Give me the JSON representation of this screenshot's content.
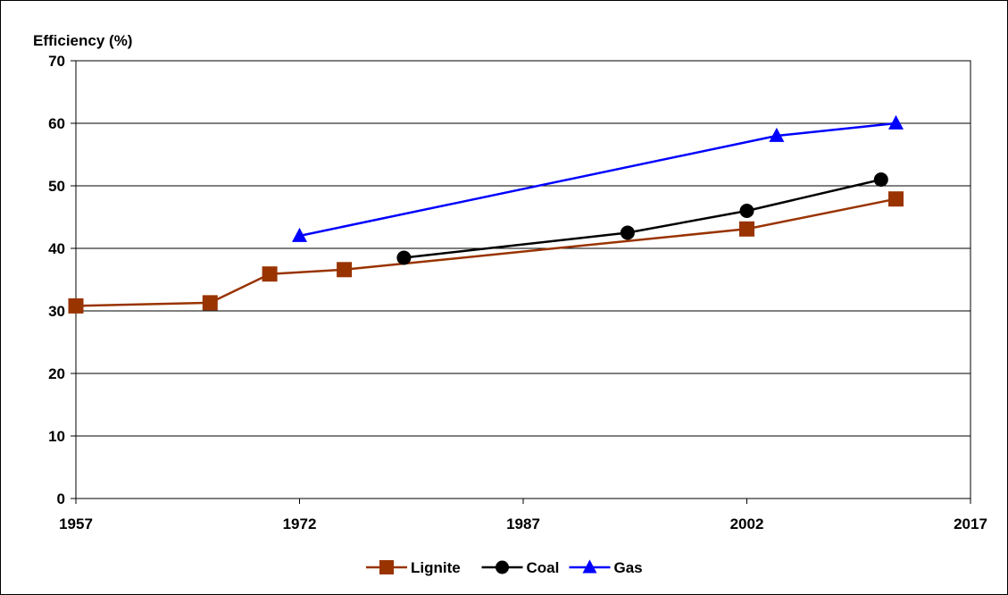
{
  "chart_data": {
    "type": "line",
    "title": "",
    "ylabel": "Efficiency (%)",
    "xlabel": "",
    "xlim": [
      1957,
      2017
    ],
    "ylim": [
      0,
      70
    ],
    "x_ticks": [
      "1957",
      "1972",
      "1987",
      "2002",
      "2017"
    ],
    "x_tick_values": [
      1957,
      1972,
      1987,
      2002,
      2017
    ],
    "y_ticks": [
      "0",
      "10",
      "20",
      "30",
      "40",
      "50",
      "60",
      "70"
    ],
    "y_tick_values": [
      0,
      10,
      20,
      30,
      40,
      50,
      60,
      70
    ],
    "grid": "horizontal",
    "legend_position": "bottom",
    "series": [
      {
        "name": "Lignite",
        "color": "#993300",
        "marker": "square",
        "points": [
          {
            "x": 1957,
            "y": 30.8
          },
          {
            "x": 1966,
            "y": 31.3
          },
          {
            "x": 1970,
            "y": 35.9
          },
          {
            "x": 1975,
            "y": 36.6
          },
          {
            "x": 2002,
            "y": 43.1
          },
          {
            "x": 2012,
            "y": 47.9
          }
        ]
      },
      {
        "name": "Coal",
        "color": "#000000",
        "marker": "circle",
        "points": [
          {
            "x": 1979,
            "y": 38.5
          },
          {
            "x": 1994,
            "y": 42.5
          },
          {
            "x": 2002,
            "y": 46.0
          },
          {
            "x": 2011,
            "y": 51.0
          }
        ]
      },
      {
        "name": "Gas",
        "color": "#0000ff",
        "marker": "triangle",
        "points": [
          {
            "x": 1972,
            "y": 42.0
          },
          {
            "x": 2004,
            "y": 58.0
          },
          {
            "x": 2012,
            "y": 60.0
          }
        ]
      }
    ]
  }
}
